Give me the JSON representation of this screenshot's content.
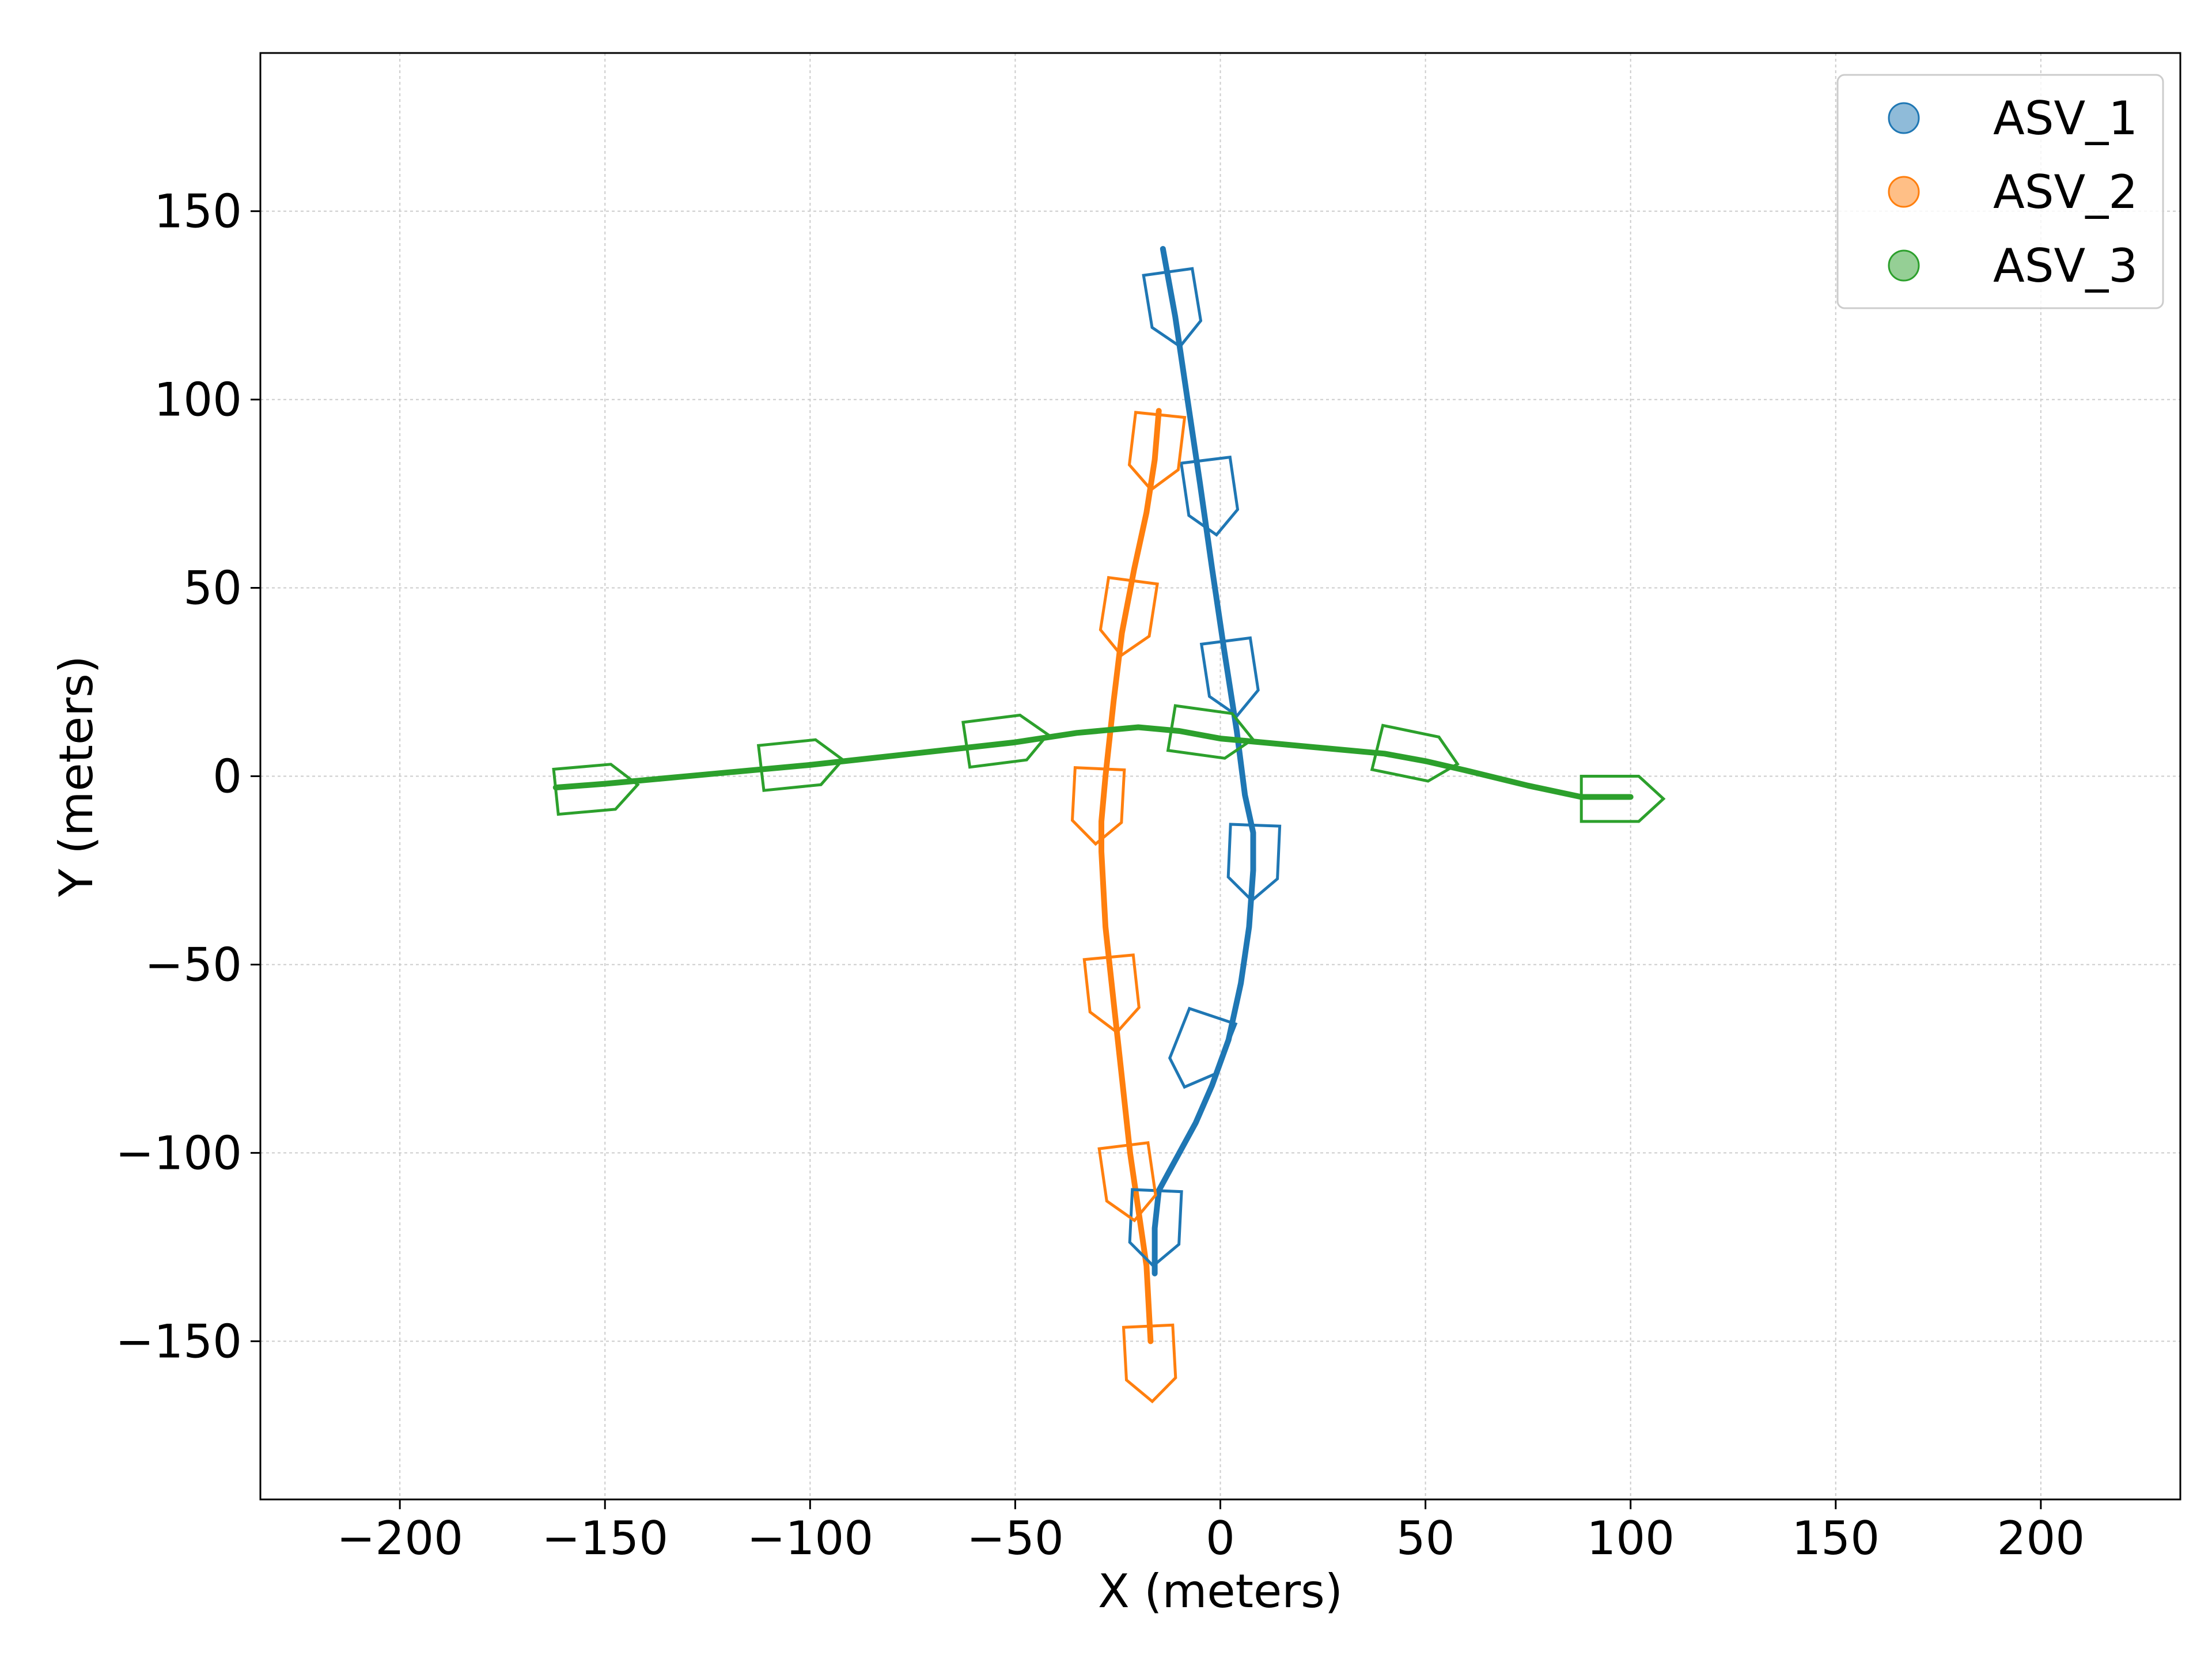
{
  "chart_data": {
    "type": "line",
    "title": "",
    "xlabel": "X (meters)",
    "ylabel": "Y (meters)",
    "xlim": [
      -234,
      234
    ],
    "ylim": [
      -192,
      192
    ],
    "xticks": [
      -200,
      -150,
      -100,
      -50,
      0,
      50,
      100,
      150,
      200
    ],
    "yticks": [
      -150,
      -100,
      -50,
      0,
      50,
      100,
      150
    ],
    "xtick_labels": [
      "−200",
      "−150",
      "−100",
      "−50",
      "0",
      "50",
      "100",
      "150",
      "200"
    ],
    "ytick_labels": [
      "−150",
      "−100",
      "−50",
      "0",
      "50",
      "100",
      "150"
    ],
    "grid": true,
    "legend_position": "top-right",
    "series": [
      {
        "name": "ASV_1",
        "color": "#1f77b4",
        "x": [
          -14,
          -11,
          -8,
          -5,
          -2,
          1,
          4,
          6,
          8,
          8,
          7,
          5,
          2,
          -2,
          -6,
          -10,
          -13,
          -15,
          -16,
          -16
        ],
        "y": [
          140,
          122,
          100,
          78,
          55,
          33,
          12,
          -5,
          -15,
          -25,
          -40,
          -55,
          -70,
          -82,
          -92,
          -100,
          -106,
          -110,
          -120,
          -132
        ],
        "hull_points": [
          [
            -11,
            122
          ],
          [
            -2,
            72
          ],
          [
            3,
            24
          ],
          [
            8,
            -25
          ],
          [
            -6,
            -75
          ],
          [
            -16,
            -122
          ]
        ]
      },
      {
        "name": "ASV_2",
        "color": "#ff7f0e",
        "x": [
          -15,
          -16,
          -18,
          -21,
          -24,
          -26,
          -28,
          -29,
          -29,
          -28,
          -26,
          -24,
          -22,
          -20,
          -18,
          -17
        ],
        "y": [
          97,
          84,
          70,
          55,
          38,
          20,
          0,
          -12,
          -20,
          -40,
          -60,
          -80,
          -100,
          -115,
          -130,
          -150
        ],
        "hull_points": [
          [
            -16,
            84
          ],
          [
            -23,
            40
          ],
          [
            -30,
            -10
          ],
          [
            -26,
            -60
          ],
          [
            -22,
            -110
          ],
          [
            -17,
            -158
          ]
        ]
      },
      {
        "name": "ASV_3",
        "color": "#2ca02c",
        "x": [
          -162,
          -150,
          -125,
          -100,
          -75,
          -50,
          -35,
          -20,
          -10,
          0,
          10,
          25,
          40,
          50,
          60,
          75,
          88,
          100
        ],
        "y": [
          -3,
          -2,
          0.5,
          3,
          6,
          9,
          11.5,
          13,
          12,
          10,
          9,
          7.5,
          6,
          4,
          1.5,
          -2.5,
          -5.5,
          -5.5
        ],
        "hull_points": [
          [
            -150,
            -3
          ],
          [
            -100,
            3.5
          ],
          [
            -50,
            10
          ],
          [
            0,
            11
          ],
          [
            50,
            5
          ],
          [
            100,
            -6
          ]
        ]
      }
    ]
  }
}
